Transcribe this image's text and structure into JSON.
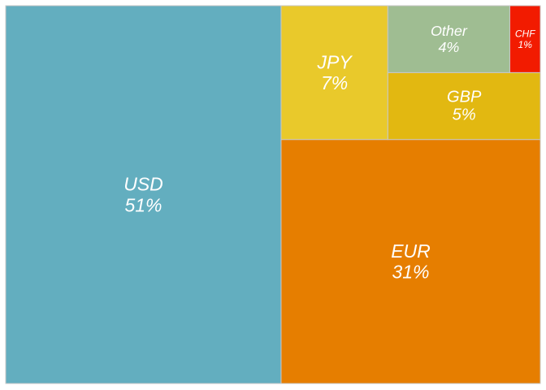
{
  "chart_data": {
    "type": "treemap",
    "title": "",
    "items": [
      {
        "label": "USD",
        "value": 51,
        "pct": "51%",
        "color": "#63aebf"
      },
      {
        "label": "EUR",
        "value": 31,
        "pct": "31%",
        "color": "#e67e00"
      },
      {
        "label": "JPY",
        "value": 7,
        "pct": "7%",
        "color": "#e9c92b"
      },
      {
        "label": "GBP",
        "value": 5,
        "pct": "5%",
        "color": "#e2b811"
      },
      {
        "label": "Other",
        "value": 4,
        "pct": "4%",
        "color": "#9fbd92"
      },
      {
        "label": "CHF",
        "value": 1,
        "pct": "1%",
        "color": "#f21b00"
      }
    ],
    "label_color": "#ffffff",
    "border_color": "#c8c8c8"
  }
}
